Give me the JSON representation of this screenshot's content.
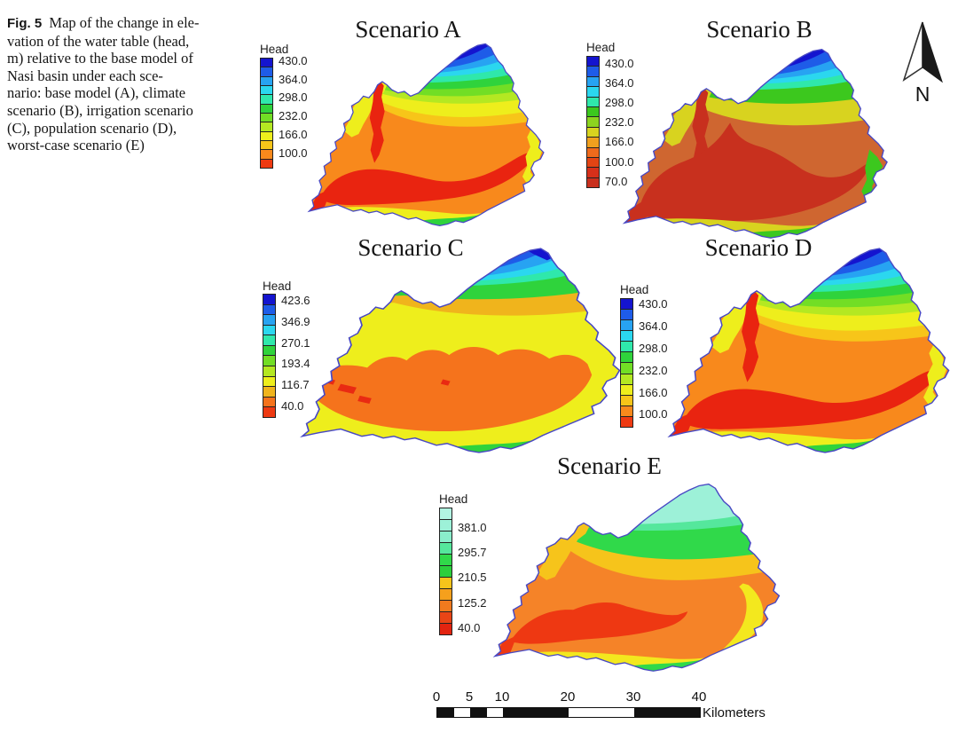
{
  "caption": {
    "label": "Fig. 5",
    "lines": [
      "Map of the change in ele-",
      "vation of the water table (head,",
      "m) relative to the base model of",
      "Nasi basin under each sce-",
      "nario: base model (A), climate",
      "scenario (B), irrigation scenario",
      "(C), population scenario (D),",
      "worst-case scenario (E)"
    ]
  },
  "panels": {
    "a": {
      "title": "Scenario A",
      "legend_title": "Head",
      "legend_values": [
        "430.0",
        "364.0",
        "298.0",
        "232.0",
        "166.0",
        "100.0"
      ],
      "ramp": [
        "#1414cf",
        "#1e5ce8",
        "#27a3f2",
        "#2bd7ef",
        "#2fe8ab",
        "#2fd33c",
        "#72de25",
        "#b4e822",
        "#eeee1c",
        "#f7c519",
        "#f8891c",
        "#ee3a12"
      ],
      "extra": {
        "red": "#e92410"
      }
    },
    "b": {
      "title": "Scenario B",
      "legend_title": "Head",
      "legend_values": [
        "430.0",
        "364.0",
        "298.0",
        "232.0",
        "166.0",
        "100.0",
        "70.0"
      ],
      "ramp": [
        "#1414cf",
        "#1e5ce8",
        "#27a3f2",
        "#2bd7ef",
        "#2fe8ab",
        "#3cc81e",
        "#8cd41f",
        "#d8d31f",
        "#f0a01e",
        "#ee6a1c",
        "#e34414",
        "#d6301a",
        "#c8301e"
      ],
      "extra": {
        "brown": "#cf6630",
        "brick": "#c8301e"
      }
    },
    "c": {
      "title": "Scenario C",
      "legend_title": "Head",
      "legend_values": [
        "423.6",
        "346.9",
        "270.1",
        "193.4",
        "116.7",
        "40.0"
      ],
      "ramp": [
        "#1414cf",
        "#1e5ce8",
        "#27a3f2",
        "#2bd7ef",
        "#2fe8ab",
        "#2fd33c",
        "#72de25",
        "#b4e822",
        "#eeee1c",
        "#f0b41c",
        "#f5731c",
        "#ee3a12"
      ],
      "extra": {
        "red": "#e92a12"
      }
    },
    "d": {
      "title": "Scenario D",
      "legend_title": "Head",
      "legend_values": [
        "430.0",
        "364.0",
        "298.0",
        "232.0",
        "166.0",
        "100.0"
      ],
      "ramp": [
        "#1414cf",
        "#1e5ce8",
        "#27a3f2",
        "#2bd7ef",
        "#2fe8ab",
        "#2fd33c",
        "#72de25",
        "#b4e822",
        "#eeee1c",
        "#f7c519",
        "#f8891c",
        "#ee3a12"
      ],
      "extra": {
        "red": "#e92410"
      }
    },
    "e": {
      "title": "Scenario E",
      "legend_title": "Head",
      "legend_values": [
        "381.0",
        "295.7",
        "210.5",
        "125.2",
        "40.0"
      ],
      "ramp": [
        "#b2f5e2",
        "#9df1d8",
        "#8aeecb",
        "#55e79c",
        "#30d94a",
        "#2bcf3c",
        "#f6c41b",
        "#f5a01c",
        "#f07a1e",
        "#e94516",
        "#e32410"
      ],
      "extra": {
        "orange": "#f58328",
        "red": "#ee3812",
        "yellow": "#f3e81e"
      }
    }
  },
  "north_arrow": {
    "label": "N"
  },
  "scale_bar": {
    "tick_labels": [
      "0",
      "5",
      "10",
      "20",
      "30",
      "40"
    ],
    "unit_label": "Kilometers"
  }
}
